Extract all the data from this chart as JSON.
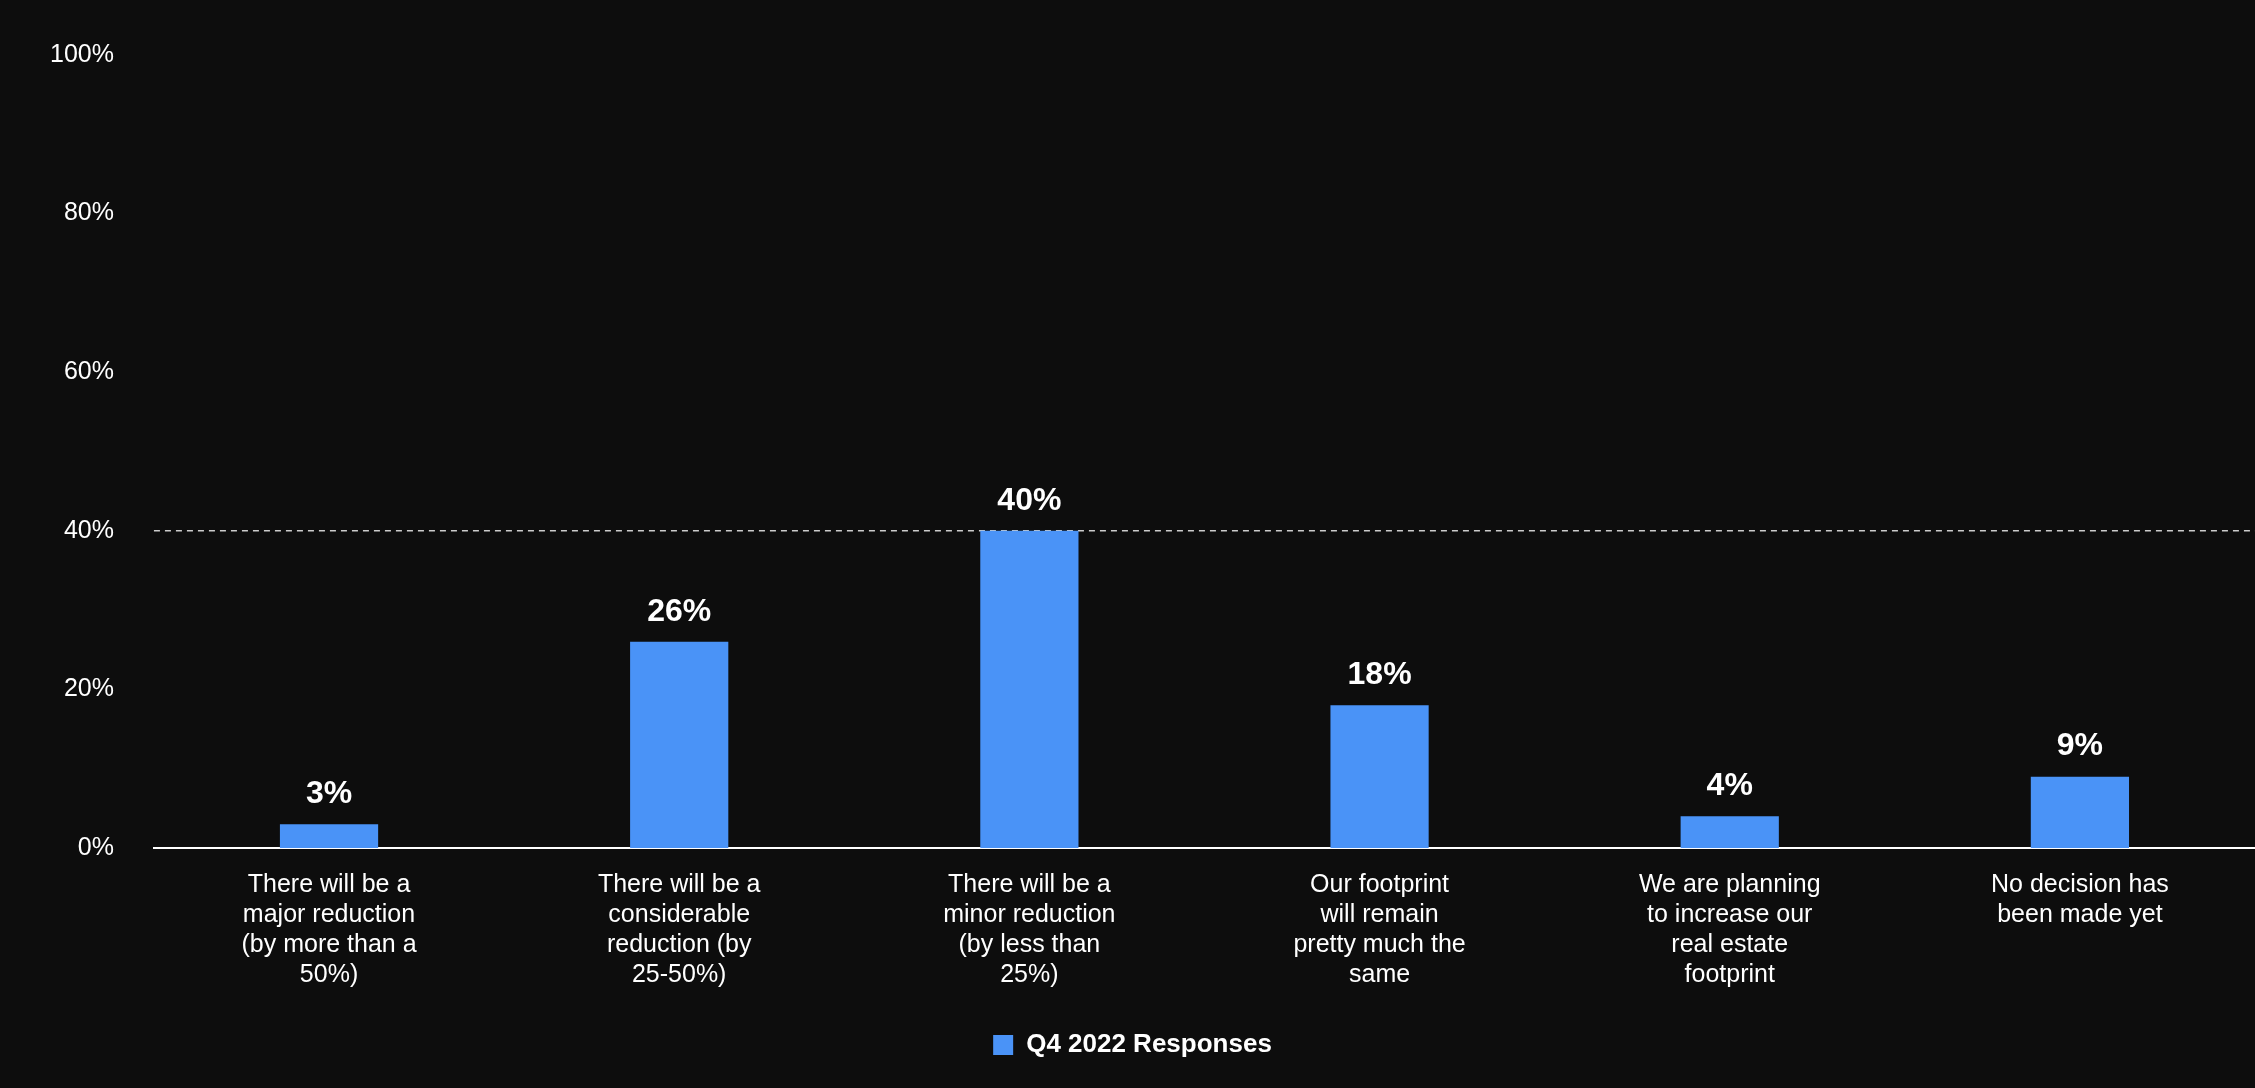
{
  "chart_data": {
    "type": "bar",
    "categories": [
      "There will be a major reduction (by more than a 50%)",
      "There will be a considerable reduction (by 25-50%)",
      "There will be a minor reduction (by less than 25%)",
      "Our footprint will remain pretty much the same",
      "We are planning to increase our real estate footprint",
      "No decision has been made yet"
    ],
    "series": [
      {
        "name": "Q4 2022 Responses",
        "color": "#4a93f7",
        "values": [
          3,
          26,
          40,
          18,
          4,
          9
        ]
      }
    ],
    "value_labels": [
      "3%",
      "26%",
      "40%",
      "18%",
      "4%",
      "9%"
    ],
    "ylim": [
      0,
      100
    ],
    "yticks": [
      {
        "value": 0,
        "label": "0%"
      },
      {
        "value": 20,
        "label": "20%"
      },
      {
        "value": 40,
        "label": "40%"
      },
      {
        "value": 60,
        "label": "60%"
      },
      {
        "value": 80,
        "label": "80%"
      },
      {
        "value": 100,
        "label": "100%"
      }
    ],
    "ref_lines": [
      {
        "axis": "y",
        "value": 40,
        "color": "#cccccc",
        "line_style": "dashed"
      }
    ],
    "grid": false,
    "legend": "bottom"
  }
}
